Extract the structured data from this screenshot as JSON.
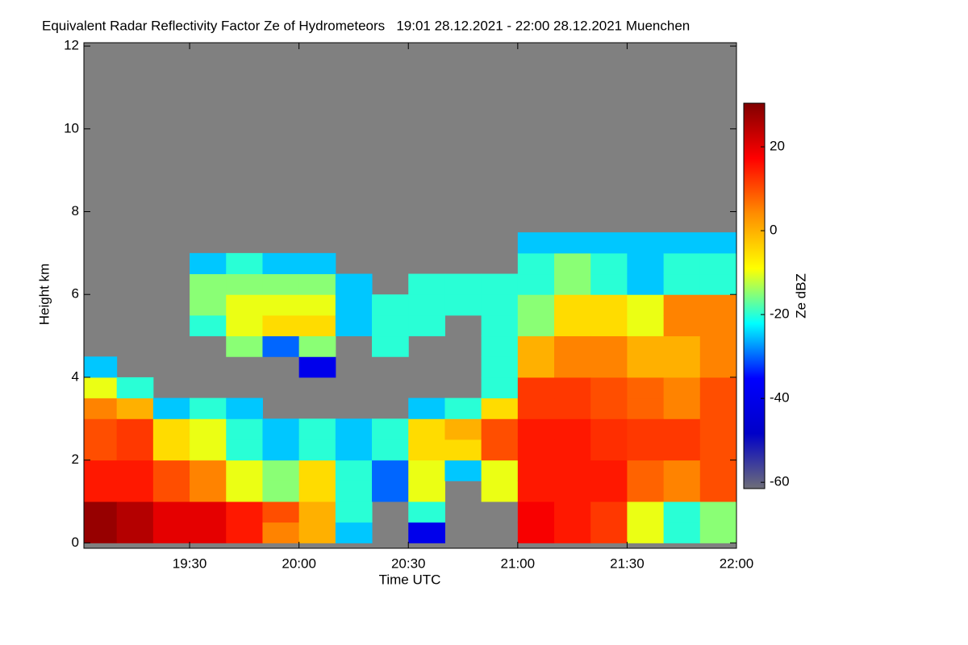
{
  "chart_data": {
    "type": "heatmap",
    "title": "Equivalent Radar Reflectivity Factor Ze of Hydrometeors   19:01 28.12.2021 - 22:00 28.12.2021 Muenchen",
    "xlabel": "Time UTC",
    "ylabel": "Height km",
    "colorbar_label": "Ze dBZ",
    "xbins": [
      19.0167,
      19.1667,
      19.3333,
      19.5,
      19.6667,
      19.8333,
      20.0,
      20.1667,
      20.3333,
      20.5,
      20.6667,
      20.8333,
      21.0,
      21.1667,
      21.3333,
      21.5,
      21.6667,
      21.8333,
      22.0
    ],
    "ybins": [
      0,
      0.5,
      1,
      1.5,
      2,
      2.5,
      3,
      3.5,
      4,
      4.5,
      5,
      5.5,
      6,
      6.5,
      7,
      7.5,
      8
    ],
    "values": [
      [
        28,
        28,
        15,
        15,
        10,
        10,
        5,
        -10,
        -25,
        null,
        null,
        null,
        null,
        null,
        null,
        null
      ],
      [
        25,
        25,
        15,
        15,
        12,
        12,
        0,
        -20,
        null,
        null,
        null,
        null,
        null,
        null,
        null,
        null
      ],
      [
        20,
        20,
        10,
        10,
        -5,
        -5,
        -25,
        null,
        null,
        null,
        null,
        null,
        null,
        null,
        null,
        null
      ],
      [
        20,
        20,
        5,
        5,
        -10,
        -10,
        -20,
        null,
        null,
        null,
        -20,
        -15,
        -15,
        -25,
        null,
        null
      ],
      [
        15,
        15,
        -10,
        -10,
        -20,
        -20,
        -25,
        null,
        null,
        -15,
        -10,
        -10,
        -15,
        -20,
        null,
        null
      ],
      [
        5,
        10,
        -15,
        -15,
        -25,
        -25,
        null,
        null,
        null,
        -30,
        -5,
        -10,
        -15,
        -25,
        null,
        null
      ],
      [
        0,
        0,
        -5,
        -5,
        -20,
        -20,
        null,
        null,
        -40,
        -15,
        -5,
        -10,
        -15,
        -25,
        null,
        null
      ],
      [
        -25,
        -20,
        -20,
        -20,
        -25,
        -25,
        null,
        null,
        null,
        null,
        -25,
        -25,
        -25,
        null,
        null,
        null
      ],
      [
        null,
        null,
        -30,
        -30,
        -20,
        -20,
        null,
        null,
        null,
        -20,
        -20,
        -20,
        null,
        null,
        null,
        null
      ],
      [
        -40,
        -20,
        -10,
        -10,
        -5,
        -5,
        -25,
        null,
        null,
        null,
        -20,
        -20,
        -20,
        null,
        null,
        null
      ],
      [
        null,
        null,
        null,
        -25,
        -5,
        0,
        -20,
        null,
        null,
        null,
        null,
        -20,
        -20,
        null,
        null,
        null
      ],
      [
        null,
        null,
        -10,
        -10,
        10,
        10,
        -5,
        -20,
        -20,
        -20,
        -20,
        -20,
        -20,
        null,
        null,
        null
      ],
      [
        18,
        18,
        15,
        15,
        15,
        15,
        12,
        12,
        0,
        0,
        -15,
        -15,
        -20,
        -20,
        -25,
        null
      ],
      [
        15,
        15,
        15,
        15,
        15,
        15,
        12,
        12,
        5,
        5,
        -5,
        -5,
        -15,
        -15,
        -25,
        null
      ],
      [
        12,
        12,
        15,
        15,
        13,
        13,
        10,
        10,
        5,
        5,
        -5,
        -5,
        -20,
        -20,
        -25,
        null
      ],
      [
        -10,
        -10,
        8,
        8,
        12,
        12,
        8,
        8,
        0,
        0,
        -10,
        -10,
        -25,
        -25,
        -25,
        null
      ],
      [
        -20,
        -20,
        5,
        5,
        12,
        12,
        5,
        5,
        0,
        0,
        5,
        5,
        -20,
        -20,
        -25,
        null
      ],
      [
        -15,
        -15,
        10,
        10,
        10,
        10,
        10,
        10,
        5,
        5,
        5,
        5,
        -20,
        -20,
        -25,
        null
      ]
    ],
    "xlim": [
      19.0167,
      22.0
    ],
    "xticks": [
      {
        "value": 19.5,
        "label": "19:30"
      },
      {
        "value": 20.0,
        "label": "20:00"
      },
      {
        "value": 20.5,
        "label": "20:30"
      },
      {
        "value": 21.0,
        "label": "21:00"
      },
      {
        "value": 21.5,
        "label": "21:30"
      },
      {
        "value": 22.0,
        "label": "22:00"
      }
    ],
    "ylim": [
      -0.13,
      12.08
    ],
    "yticks": [
      0,
      2,
      4,
      6,
      8,
      10,
      12
    ],
    "zlim": [
      -61.5,
      30.4
    ],
    "zticks": [
      -60,
      -40,
      -20,
      0,
      20
    ],
    "colormap": [
      "#6e6e78",
      "#0000c8",
      "#0000ff",
      "#00ffff",
      "#ffff00",
      "#ff8c00",
      "#ff0000",
      "#800000"
    ],
    "background_color": "#808080"
  }
}
